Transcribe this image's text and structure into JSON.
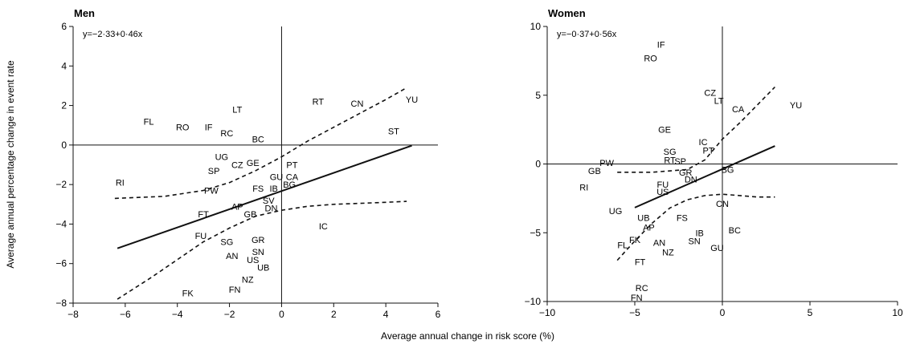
{
  "figure": {
    "ylabel": "Average annual percentage change in event rate",
    "xlabel": "Average annual change in risk score (%)"
  },
  "chart_data": [
    {
      "type": "scatter",
      "title": "Men",
      "equation": "y=−2·33+0·46x",
      "regression": {
        "intercept": -2.33,
        "slope": 0.46,
        "x_range": [
          -6.3,
          5.0
        ]
      },
      "ci_upper": [
        [
          -6.4,
          -2.7
        ],
        [
          -4.5,
          -2.6
        ],
        [
          -3,
          -2.3
        ],
        [
          -2,
          -1.9
        ],
        [
          -1,
          -1.3
        ],
        [
          0,
          -0.6
        ],
        [
          1,
          0.2
        ],
        [
          2,
          0.9
        ],
        [
          3,
          1.6
        ],
        [
          4,
          2.3
        ],
        [
          4.8,
          2.9
        ]
      ],
      "ci_lower": [
        [
          -6.3,
          -7.8
        ],
        [
          -5,
          -6.7
        ],
        [
          -4,
          -5.8
        ],
        [
          -3,
          -4.9
        ],
        [
          -2,
          -4.2
        ],
        [
          -1,
          -3.6
        ],
        [
          0,
          -3.3
        ],
        [
          1,
          -3.1
        ],
        [
          2,
          -3.0
        ],
        [
          3,
          -2.95
        ],
        [
          4,
          -2.9
        ],
        [
          4.8,
          -2.85
        ]
      ],
      "xlim": [
        -8,
        6
      ],
      "ylim": [
        -8,
        6
      ],
      "xticks": [
        -8,
        -6,
        -4,
        -2,
        0,
        2,
        4,
        6
      ],
      "yticks": [
        -8,
        -6,
        -4,
        -2,
        0,
        2,
        4,
        6
      ],
      "points": [
        {
          "label": "LT",
          "x": -1.7,
          "y": 1.8
        },
        {
          "label": "RT",
          "x": 1.4,
          "y": 2.2
        },
        {
          "label": "CN",
          "x": 2.9,
          "y": 2.1
        },
        {
          "label": "YU",
          "x": 5.0,
          "y": 2.3
        },
        {
          "label": "FL",
          "x": -5.1,
          "y": 1.2
        },
        {
          "label": "RO",
          "x": -3.8,
          "y": 0.9
        },
        {
          "label": "IF",
          "x": -2.8,
          "y": 0.9
        },
        {
          "label": "RC",
          "x": -2.1,
          "y": 0.6
        },
        {
          "label": "BC",
          "x": -0.9,
          "y": 0.3
        },
        {
          "label": "ST",
          "x": 4.3,
          "y": 0.7
        },
        {
          "label": "UG",
          "x": -2.3,
          "y": -0.6
        },
        {
          "label": "CZ",
          "x": -1.7,
          "y": -1.0
        },
        {
          "label": "GE",
          "x": -1.1,
          "y": -0.9
        },
        {
          "label": "SP",
          "x": -2.6,
          "y": -1.3
        },
        {
          "label": "PT",
          "x": 0.4,
          "y": -1.0
        },
        {
          "label": "GU",
          "x": -0.2,
          "y": -1.6
        },
        {
          "label": "CA",
          "x": 0.4,
          "y": -1.6
        },
        {
          "label": "RI",
          "x": -6.2,
          "y": -1.9
        },
        {
          "label": "PW",
          "x": -2.7,
          "y": -2.3
        },
        {
          "label": "FS",
          "x": -0.9,
          "y": -2.2
        },
        {
          "label": "IB",
          "x": -0.3,
          "y": -2.2
        },
        {
          "label": "BG",
          "x": 0.3,
          "y": -2.0
        },
        {
          "label": "SV",
          "x": -0.5,
          "y": -2.8
        },
        {
          "label": "AP",
          "x": -1.7,
          "y": -3.1
        },
        {
          "label": "DN",
          "x": -0.4,
          "y": -3.2
        },
        {
          "label": "FT",
          "x": -3.0,
          "y": -3.5
        },
        {
          "label": "GB",
          "x": -1.2,
          "y": -3.5
        },
        {
          "label": "IC",
          "x": 1.6,
          "y": -4.1
        },
        {
          "label": "FU",
          "x": -3.1,
          "y": -4.6
        },
        {
          "label": "SG",
          "x": -2.1,
          "y": -4.9
        },
        {
          "label": "GR",
          "x": -0.9,
          "y": -4.8
        },
        {
          "label": "SN",
          "x": -0.9,
          "y": -5.4
        },
        {
          "label": "AN",
          "x": -1.9,
          "y": -5.6
        },
        {
          "label": "US",
          "x": -1.1,
          "y": -5.8
        },
        {
          "label": "UB",
          "x": -0.7,
          "y": -6.2
        },
        {
          "label": "NZ",
          "x": -1.3,
          "y": -6.8
        },
        {
          "label": "FK",
          "x": -3.6,
          "y": -7.5
        },
        {
          "label": "FN",
          "x": -1.8,
          "y": -7.3
        }
      ]
    },
    {
      "type": "scatter",
      "title": "Women",
      "equation": "y=−0·37+0·56x",
      "regression": {
        "intercept": -0.37,
        "slope": 0.56,
        "x_range": [
          -5.0,
          3.0
        ]
      },
      "ci_upper": [
        [
          -6,
          -0.6
        ],
        [
          -4,
          -0.6
        ],
        [
          -2,
          -0.4
        ],
        [
          -1,
          0.3
        ],
        [
          0,
          1.8
        ],
        [
          1,
          3.0
        ],
        [
          2,
          4.3
        ],
        [
          3,
          5.6
        ]
      ],
      "ci_lower": [
        [
          -6,
          -7.0
        ],
        [
          -5,
          -5.6
        ],
        [
          -4,
          -4.3
        ],
        [
          -3,
          -3.2
        ],
        [
          -2,
          -2.6
        ],
        [
          -1,
          -2.3
        ],
        [
          0,
          -2.2
        ],
        [
          1,
          -2.3
        ],
        [
          2,
          -2.4
        ],
        [
          3,
          -2.4
        ]
      ],
      "xlim": [
        -10,
        10
      ],
      "ylim": [
        -10,
        10
      ],
      "xticks": [
        -10,
        -5,
        0,
        5,
        10
      ],
      "yticks": [
        -10,
        -5,
        0,
        5,
        10
      ],
      "points": [
        {
          "label": "IF",
          "x": -3.5,
          "y": 8.7
        },
        {
          "label": "RO",
          "x": -4.1,
          "y": 7.7
        },
        {
          "label": "CZ",
          "x": -0.7,
          "y": 5.2
        },
        {
          "label": "LT",
          "x": -0.2,
          "y": 4.6
        },
        {
          "label": "CA",
          "x": 0.9,
          "y": 4.0
        },
        {
          "label": "YU",
          "x": 4.2,
          "y": 4.3
        },
        {
          "label": "GE",
          "x": -3.3,
          "y": 2.5
        },
        {
          "label": "IC",
          "x": -1.1,
          "y": 1.6
        },
        {
          "label": "PT",
          "x": -0.8,
          "y": 1.0
        },
        {
          "label": "SG",
          "x": -3.0,
          "y": 0.9
        },
        {
          "label": "RT",
          "x": -3.0,
          "y": 0.3
        },
        {
          "label": "SP",
          "x": -2.4,
          "y": 0.2
        },
        {
          "label": "PW",
          "x": -6.6,
          "y": 0.1
        },
        {
          "label": "GB",
          "x": -7.3,
          "y": -0.5
        },
        {
          "label": "GR",
          "x": -2.1,
          "y": -0.6
        },
        {
          "label": "BG",
          "x": 0.3,
          "y": -0.4
        },
        {
          "label": "DN",
          "x": -1.8,
          "y": -1.1
        },
        {
          "label": "FU",
          "x": -3.4,
          "y": -1.5
        },
        {
          "label": "RI",
          "x": -7.9,
          "y": -1.7
        },
        {
          "label": "US",
          "x": -3.4,
          "y": -2.0
        },
        {
          "label": "CN",
          "x": 0.0,
          "y": -2.9
        },
        {
          "label": "UG",
          "x": -6.1,
          "y": -3.4
        },
        {
          "label": "UB",
          "x": -4.5,
          "y": -3.9
        },
        {
          "label": "FS",
          "x": -2.3,
          "y": -3.9
        },
        {
          "label": "AP",
          "x": -4.2,
          "y": -4.6
        },
        {
          "label": "BC",
          "x": 0.7,
          "y": -4.8
        },
        {
          "label": "IB",
          "x": -1.3,
          "y": -5.0
        },
        {
          "label": "FK",
          "x": -5.0,
          "y": -5.5
        },
        {
          "label": "AN",
          "x": -3.6,
          "y": -5.7
        },
        {
          "label": "SN",
          "x": -1.6,
          "y": -5.6
        },
        {
          "label": "FL",
          "x": -5.7,
          "y": -5.9
        },
        {
          "label": "GU",
          "x": -0.3,
          "y": -6.1
        },
        {
          "label": "NZ",
          "x": -3.1,
          "y": -6.4
        },
        {
          "label": "FT",
          "x": -4.7,
          "y": -7.1
        },
        {
          "label": "RC",
          "x": -4.6,
          "y": -9.0
        },
        {
          "label": "FN",
          "x": -4.9,
          "y": -9.7
        }
      ]
    }
  ]
}
